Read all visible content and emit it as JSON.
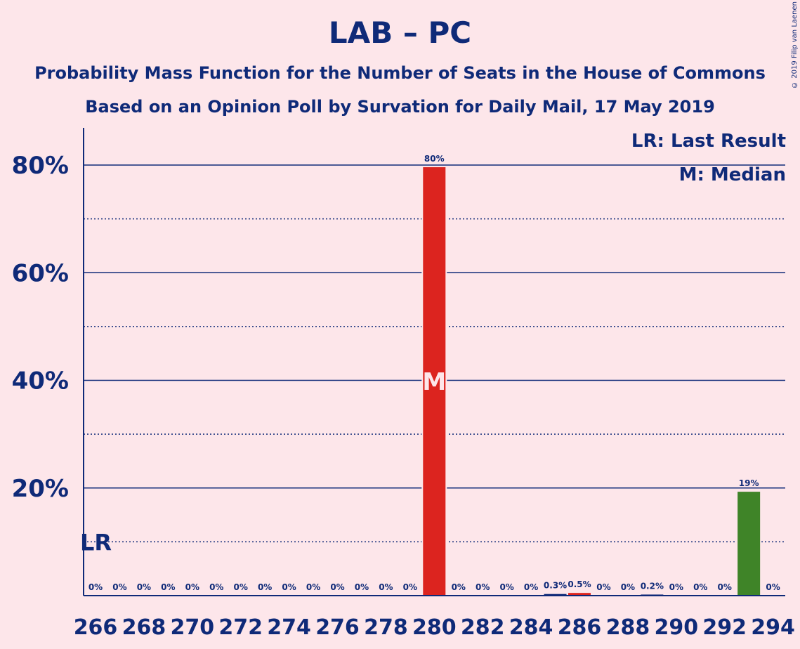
{
  "title": "LAB – PC",
  "subtitle1": "Probability Mass Function for the Number of Seats in the House of Commons",
  "subtitle2": "Based on an Opinion Poll by Survation for Daily Mail, 17 May 2019",
  "copyright": "© 2019 Filip van Laenen",
  "legend": {
    "lr": "LR: Last Result",
    "m": "M: Median"
  },
  "colors": {
    "background": "#fde6ea",
    "text": "#0f2a78",
    "median_bar": "#dc241f",
    "pc_bar": "#3f8428",
    "grid": "#0f2a78"
  },
  "chart_data": {
    "type": "bar",
    "x": [
      266,
      267,
      268,
      269,
      270,
      271,
      272,
      273,
      274,
      275,
      276,
      277,
      278,
      279,
      280,
      281,
      282,
      283,
      284,
      285,
      286,
      287,
      288,
      289,
      290,
      291,
      292,
      293,
      294
    ],
    "values": [
      0,
      0,
      0,
      0,
      0,
      0,
      0,
      0,
      0,
      0,
      0,
      0,
      0,
      0,
      79.6,
      0,
      0,
      0,
      0,
      0.3,
      0.5,
      0,
      0,
      0.2,
      0,
      0,
      0,
      19.3,
      0
    ],
    "labels": [
      "0%",
      "0%",
      "0%",
      "0%",
      "0%",
      "0%",
      "0%",
      "0%",
      "0%",
      "0%",
      "0%",
      "0%",
      "0%",
      "0%",
      "80%",
      "0%",
      "0%",
      "0%",
      "0%",
      "0.3%",
      "0.5%",
      "0%",
      "0%",
      "0.2%",
      "0%",
      "0%",
      "0%",
      "19%",
      "0%"
    ],
    "ylim": [
      0,
      87
    ],
    "yticks_major": [
      20,
      40,
      60,
      80
    ],
    "yticks_minor": [
      10,
      30,
      50,
      70
    ],
    "ytick_labels": [
      "20%",
      "40%",
      "60%",
      "80%"
    ],
    "xtick_values": [
      266,
      268,
      270,
      272,
      274,
      276,
      278,
      280,
      282,
      284,
      286,
      288,
      290,
      292,
      294
    ],
    "last_result": 266,
    "last_result_label": "LR",
    "median": 280,
    "median_label": "M",
    "bar_colors": {
      "280": "#dc241f",
      "285": "#0f2a78",
      "286": "#dc241f",
      "289": "#0f2a78",
      "293": "#3f8428"
    },
    "grid": true,
    "legend_position": "top-right"
  }
}
